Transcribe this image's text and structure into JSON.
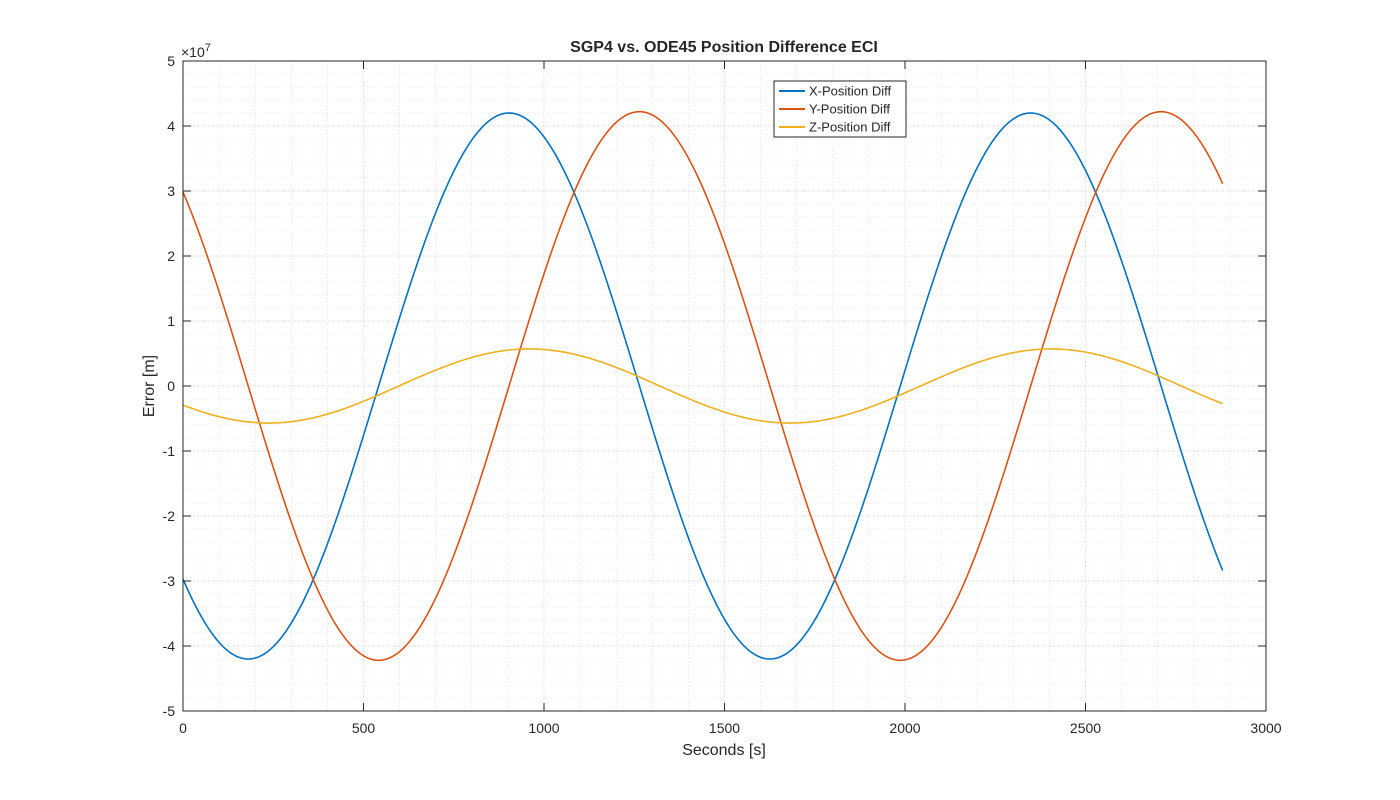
{
  "chart_data": {
    "type": "line",
    "title": "SGP4 vs. ODE45 Position Difference ECI",
    "xlabel": "Seconds [s]",
    "ylabel": "Error [m]",
    "exponent_base": "×10",
    "exponent_power": "7",
    "xlim": [
      0,
      3000
    ],
    "ylim": [
      -5,
      5
    ],
    "y_scale_factor": 10000000,
    "xticks": [
      0,
      500,
      1000,
      1500,
      2000,
      2500,
      3000
    ],
    "yticks": [
      -5,
      -4,
      -3,
      -2,
      -1,
      0,
      1,
      2,
      3,
      4,
      5
    ],
    "grid": "major and minor",
    "legend_location": "top-right (inside)",
    "series": [
      {
        "name": "X-Position Diff",
        "color": "#0072BD",
        "amplitude": 4.2,
        "period": 1445,
        "phase_deg": 225,
        "x_start": 0,
        "x_end": 2880
      },
      {
        "name": "Y-Position Diff",
        "color": "#D95319",
        "amplitude": 4.22,
        "period": 1445,
        "phase_deg": 135,
        "x_start": 0,
        "x_end": 2880
      },
      {
        "name": "Z-Position Diff",
        "color": "#EDB120",
        "amplitude": 0.57,
        "period": 1445,
        "phase_deg": 211,
        "x_start": 0,
        "x_end": 2880
      }
    ]
  }
}
